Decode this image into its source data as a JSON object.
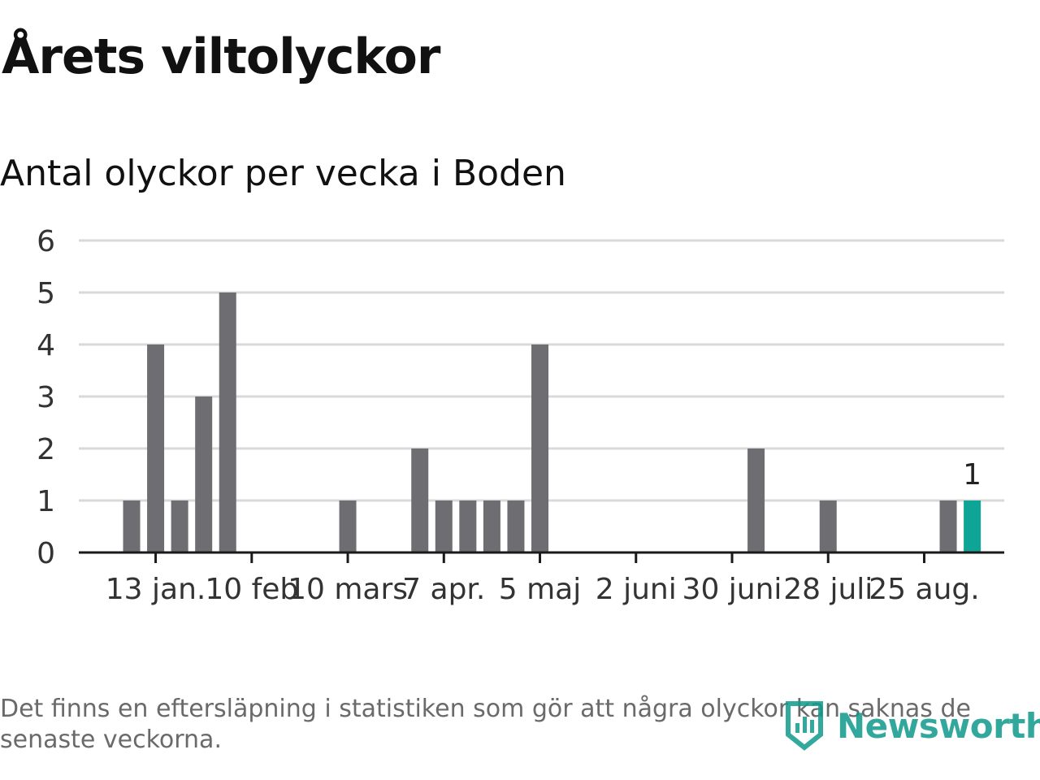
{
  "title": "Årets viltolyckor",
  "subtitle": "Antal olyckor per vecka i Boden",
  "footnote": "Det finns en eftersläpning i statistiken som gör att några olyckor kan saknas de senaste veckorna.",
  "brand": "Newsworthy",
  "colors": {
    "bar": "#6e6d72",
    "highlight": "#0ea596",
    "grid": "#d9d9d9",
    "axis": "#1a1a1a",
    "brand": "#0f9a8c"
  },
  "chart_data": {
    "type": "bar",
    "xlabel": "",
    "ylabel": "",
    "ylim": [
      0,
      6
    ],
    "y_ticks": [
      "0",
      "1",
      "2",
      "3",
      "4",
      "5",
      "6"
    ],
    "grid": true,
    "x_tick_labels": [
      "13 jan.",
      "10 feb",
      "10 mars",
      "7 apr.",
      "5 maj",
      "2 juni",
      "30 juni",
      "28 juli",
      "25 aug."
    ],
    "weeks": [
      "2025-W01",
      "2025-W02",
      "2025-W03",
      "2025-W04",
      "2025-W05",
      "2025-W06",
      "2025-W07",
      "2025-W08",
      "2025-W09",
      "2025-W10",
      "2025-W11",
      "2025-W12",
      "2025-W13",
      "2025-W14",
      "2025-W15",
      "2025-W16",
      "2025-W17",
      "2025-W18",
      "2025-W19",
      "2025-W20",
      "2025-W21",
      "2025-W22",
      "2025-W23",
      "2025-W24",
      "2025-W25",
      "2025-W26",
      "2025-W27",
      "2025-W28",
      "2025-W29",
      "2025-W30",
      "2025-W31",
      "2025-W32",
      "2025-W33",
      "2025-W34",
      "2025-W35",
      "2025-W36"
    ],
    "values": [
      1,
      4,
      1,
      3,
      5,
      0,
      0,
      0,
      0,
      1,
      0,
      0,
      2,
      1,
      1,
      1,
      1,
      4,
      0,
      0,
      0,
      0,
      0,
      0,
      0,
      0,
      2,
      0,
      0,
      1,
      0,
      0,
      0,
      0,
      1,
      1
    ],
    "highlight_last": true,
    "annotation": "1"
  }
}
